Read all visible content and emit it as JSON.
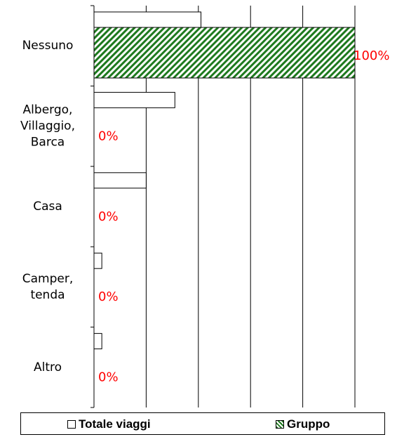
{
  "chart_data": {
    "type": "bar",
    "orientation": "horizontal",
    "categories": [
      [
        "Nessuno"
      ],
      [
        "Albergo,",
        "Villaggio,",
        "Barca"
      ],
      [
        "Casa"
      ],
      [
        "Camper,",
        "tenda"
      ],
      [
        "Altro"
      ]
    ],
    "series": [
      {
        "name": "Totale viaggi",
        "values": [
          41,
          31,
          20,
          3,
          3
        ],
        "fill": "white"
      },
      {
        "name": "Gruppo",
        "values": [
          100,
          0,
          0,
          0,
          0
        ],
        "fill": "green-hatch"
      }
    ],
    "data_labels": [
      "100%",
      "0%",
      "0%",
      "0%",
      "0%"
    ],
    "xlim": [
      0,
      100
    ],
    "grid": true,
    "legend_position": "bottom",
    "colors": {
      "hatch": "#1e7a1e",
      "label": "#ff0000",
      "axis": "#000000"
    }
  }
}
